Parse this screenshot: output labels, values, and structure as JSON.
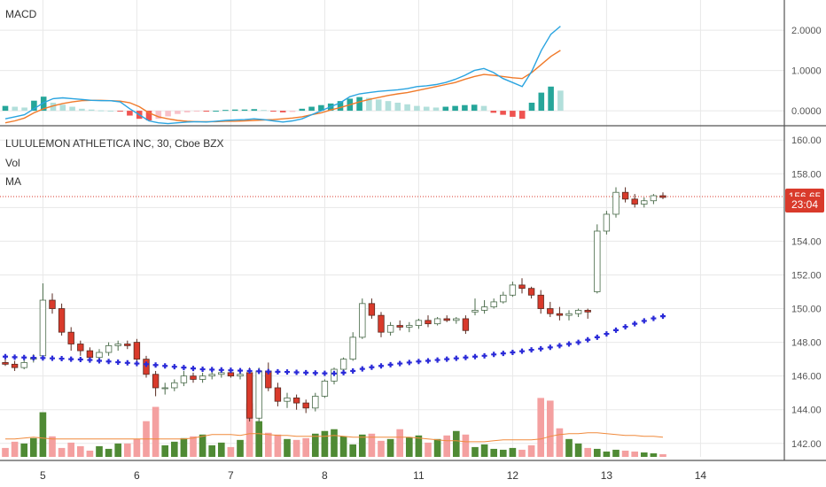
{
  "panes": {
    "macd": {
      "title": "MACD"
    },
    "price": {
      "title": "LULULEMON ATHLETICA INC, 30, Cboe BZX",
      "volume_label": "Vol",
      "ma_label": "MA"
    }
  },
  "price_tags": {
    "last_price": "156.65",
    "countdown": "23:04"
  },
  "colors": {
    "up_body": "#ffffff",
    "up_border": "#4a6b4a",
    "down": "#d93a2b",
    "vol_up": "#4f8a34",
    "vol_down": "#f4a0a0",
    "vol_ma": "#f08a3c",
    "ma_marker": "#2a2ad8",
    "macd_line": "#2aa4e0",
    "signal_line": "#f07a2a",
    "hist_up": "#26a69a",
    "hist_up_fading": "#b2dfdb",
    "hist_down": "#ef5350",
    "hist_down_fading": "#f8c0c8",
    "last_price_line": "#d93a2b",
    "grid": "#e8e8e8",
    "tag_bg": "#d93a2b"
  },
  "chart_data": [
    {
      "type": "histogram",
      "title": "MACD",
      "ylim": [
        -0.35,
        2.75
      ],
      "yticks": [
        "2.0000",
        "1.0000",
        "0.0000"
      ],
      "ytick_values": [
        2,
        1,
        0
      ],
      "n": 59,
      "macd": [
        -0.2,
        -0.15,
        -0.1,
        0.05,
        0.2,
        0.3,
        0.32,
        0.3,
        0.28,
        0.26,
        0.25,
        0.25,
        0.22,
        0.05,
        -0.1,
        -0.25,
        -0.3,
        -0.32,
        -0.3,
        -0.28,
        -0.27,
        -0.28,
        -0.26,
        -0.24,
        -0.23,
        -0.22,
        -0.2,
        -0.22,
        -0.25,
        -0.28,
        -0.25,
        -0.2,
        -0.1,
        0.0,
        0.1,
        0.2,
        0.35,
        0.42,
        0.45,
        0.48,
        0.5,
        0.52,
        0.55,
        0.6,
        0.62,
        0.65,
        0.7,
        0.78,
        0.88,
        1.0,
        1.05,
        0.95,
        0.8,
        0.7,
        0.6,
        0.98,
        1.5,
        1.9,
        2.1
      ],
      "signal": [
        -0.3,
        -0.25,
        -0.18,
        -0.05,
        0.05,
        0.12,
        0.18,
        0.22,
        0.25,
        0.26,
        0.26,
        0.25,
        0.24,
        0.2,
        0.1,
        -0.05,
        -0.15,
        -0.2,
        -0.24,
        -0.26,
        -0.27,
        -0.27,
        -0.27,
        -0.26,
        -0.26,
        -0.25,
        -0.24,
        -0.23,
        -0.22,
        -0.2,
        -0.18,
        -0.15,
        -0.1,
        -0.05,
        0.02,
        0.08,
        0.15,
        0.22,
        0.28,
        0.33,
        0.38,
        0.42,
        0.45,
        0.5,
        0.55,
        0.6,
        0.65,
        0.7,
        0.78,
        0.85,
        0.9,
        0.88,
        0.85,
        0.82,
        0.8,
        0.95,
        1.15,
        1.35,
        1.5
      ],
      "histogram": [
        0.12,
        0.1,
        0.08,
        0.25,
        0.35,
        0.2,
        0.15,
        0.1,
        0.05,
        0.03,
        0.01,
        0.0,
        -0.02,
        -0.12,
        -0.2,
        -0.24,
        -0.2,
        -0.14,
        -0.08,
        -0.04,
        -0.02,
        -0.02,
        0.0,
        0.02,
        0.03,
        0.03,
        0.04,
        0.02,
        -0.01,
        -0.04,
        -0.03,
        0.05,
        0.1,
        0.14,
        0.18,
        0.24,
        0.3,
        0.34,
        0.32,
        0.28,
        0.24,
        0.2,
        0.16,
        0.12,
        0.1,
        0.08,
        0.1,
        0.12,
        0.14,
        0.15,
        0.12,
        -0.05,
        -0.1,
        -0.15,
        -0.2,
        0.2,
        0.45,
        0.6,
        0.5
      ]
    },
    {
      "type": "candlestick",
      "title": "LULULEMON ATHLETICA INC, 30, Cboe BZX",
      "ylim": [
        141.2,
        160.8
      ],
      "yticks": [
        "160.00",
        "158.00",
        "156.00",
        "154.00",
        "152.00",
        "150.00",
        "148.00",
        "146.00",
        "144.00",
        "142.00"
      ],
      "ytick_values": [
        160,
        158,
        156,
        154,
        152,
        150,
        148,
        146,
        144,
        142
      ],
      "x_tick_labels": [
        "5",
        "6",
        "7",
        "8",
        "11",
        "12",
        "13",
        "14"
      ],
      "x_tick_index": [
        4,
        14,
        24,
        34,
        44,
        54,
        64,
        74
      ],
      "total_slots": 82,
      "last_price": 156.65,
      "ohlc": [
        [
          146.8,
          147.0,
          146.6,
          146.7
        ],
        [
          146.7,
          146.9,
          146.3,
          146.5
        ],
        [
          146.5,
          147.0,
          146.4,
          146.8
        ],
        [
          147.0,
          147.3,
          146.8,
          147.1
        ],
        [
          147.2,
          151.5,
          147.0,
          150.5
        ],
        [
          150.5,
          150.9,
          149.7,
          150.0
        ],
        [
          150.0,
          150.3,
          148.4,
          148.6
        ],
        [
          148.6,
          148.9,
          147.5,
          147.9
        ],
        [
          147.9,
          148.1,
          147.2,
          147.5
        ],
        [
          147.5,
          147.7,
          146.9,
          147.1
        ],
        [
          147.1,
          147.6,
          146.9,
          147.4
        ],
        [
          147.4,
          148.0,
          147.2,
          147.8
        ],
        [
          147.8,
          148.1,
          147.5,
          147.9
        ],
        [
          147.9,
          148.1,
          147.6,
          147.8
        ],
        [
          148.0,
          148.2,
          146.8,
          147.0
        ],
        [
          147.0,
          147.2,
          145.9,
          146.1
        ],
        [
          146.1,
          146.3,
          144.8,
          145.3
        ],
        [
          145.3,
          145.6,
          144.9,
          145.3
        ],
        [
          145.3,
          145.8,
          145.1,
          145.6
        ],
        [
          145.6,
          146.3,
          145.4,
          146.0
        ],
        [
          146.0,
          146.2,
          145.6,
          145.8
        ],
        [
          145.8,
          146.2,
          145.6,
          146.0
        ],
        [
          146.0,
          146.3,
          145.8,
          146.1
        ],
        [
          146.1,
          146.4,
          145.9,
          146.2
        ],
        [
          146.2,
          146.4,
          145.9,
          146.0
        ],
        [
          146.0,
          146.3,
          145.8,
          146.1
        ],
        [
          146.2,
          146.5,
          143.3,
          143.5
        ],
        [
          143.5,
          146.5,
          143.2,
          146.3
        ],
        [
          146.3,
          146.8,
          145.1,
          145.3
        ],
        [
          145.3,
          145.6,
          144.2,
          144.5
        ],
        [
          144.5,
          145.0,
          144.1,
          144.7
        ],
        [
          144.7,
          144.9,
          144.0,
          144.4
        ],
        [
          144.4,
          144.6,
          143.8,
          144.1
        ],
        [
          144.1,
          145.0,
          143.9,
          144.8
        ],
        [
          144.8,
          145.8,
          144.7,
          145.7
        ],
        [
          145.7,
          146.5,
          145.5,
          146.4
        ],
        [
          146.4,
          147.1,
          146.2,
          147.0
        ],
        [
          147.0,
          148.6,
          146.9,
          148.3
        ],
        [
          148.3,
          150.6,
          148.2,
          150.3
        ],
        [
          150.3,
          150.6,
          149.4,
          149.6
        ],
        [
          149.6,
          149.8,
          148.3,
          148.6
        ],
        [
          148.6,
          149.2,
          148.4,
          149.0
        ],
        [
          149.0,
          149.3,
          148.7,
          148.9
        ],
        [
          148.9,
          149.2,
          148.6,
          149.0
        ],
        [
          149.0,
          149.4,
          148.8,
          149.3
        ],
        [
          149.3,
          149.6,
          148.9,
          149.1
        ],
        [
          149.1,
          149.5,
          149.0,
          149.4
        ],
        [
          149.4,
          149.6,
          149.2,
          149.3
        ],
        [
          149.3,
          149.5,
          149.1,
          149.4
        ],
        [
          149.4,
          149.6,
          148.5,
          148.7
        ],
        [
          149.8,
          150.6,
          149.6,
          149.9
        ],
        [
          149.9,
          150.5,
          149.7,
          150.1
        ],
        [
          150.1,
          150.6,
          150.0,
          150.4
        ],
        [
          150.4,
          151.0,
          150.3,
          150.8
        ],
        [
          150.8,
          151.6,
          150.7,
          151.4
        ],
        [
          151.4,
          151.8,
          150.9,
          151.2
        ],
        [
          151.2,
          151.3,
          150.6,
          150.8
        ],
        [
          150.8,
          151.1,
          149.7,
          150.0
        ],
        [
          150.0,
          150.4,
          149.5,
          149.7
        ],
        [
          149.7,
          150.1,
          149.3,
          149.6
        ],
        [
          149.6,
          149.9,
          149.3,
          149.7
        ],
        [
          149.7,
          150.0,
          149.5,
          149.9
        ],
        [
          149.9,
          150.0,
          149.4,
          149.8
        ],
        [
          151.0,
          155.0,
          150.9,
          154.6
        ],
        [
          154.6,
          155.8,
          154.4,
          155.6
        ],
        [
          155.6,
          157.2,
          155.4,
          156.9
        ],
        [
          156.9,
          157.2,
          156.3,
          156.5
        ],
        [
          156.5,
          156.8,
          156.0,
          156.2
        ],
        [
          156.2,
          156.6,
          156.0,
          156.4
        ],
        [
          156.4,
          156.8,
          156.2,
          156.7
        ],
        [
          156.7,
          156.9,
          156.5,
          156.6
        ]
      ],
      "volume_ylim": [
        0,
        11.5
      ],
      "volume": [
        1.0,
        1.7,
        1.5,
        2.1,
        5.0,
        2.3,
        1.0,
        1.6,
        1.2,
        0.7,
        1.2,
        0.9,
        1.5,
        1.5,
        2.0,
        4.0,
        5.6,
        1.3,
        1.7,
        2.1,
        2.3,
        2.5,
        1.3,
        1.6,
        1.1,
        1.9,
        6.0,
        4.0,
        2.7,
        2.5,
        2.0,
        1.9,
        2.1,
        2.6,
        2.9,
        3.1,
        2.3,
        1.4,
        2.5,
        2.6,
        1.8,
        2.0,
        3.1,
        2.2,
        2.4,
        1.6,
        2.0,
        2.4,
        2.9,
        2.5,
        1.1,
        1.4,
        0.9,
        0.8,
        1.0,
        0.8,
        1.3,
        6.6,
        6.3,
        3.2,
        2.0,
        1.5,
        1.0,
        0.9,
        0.6,
        0.8,
        0.7,
        0.6,
        0.5,
        0.4,
        0.3
      ],
      "volume_ma": [
        2.0,
        2.0,
        2.1,
        2.2,
        2.1,
        2.0,
        2.0,
        2.0,
        2.0,
        2.0,
        2.0,
        2.0,
        2.0,
        2.0,
        2.0,
        2.0,
        2.0,
        2.0,
        2.0,
        2.0,
        2.1,
        2.3,
        2.5,
        2.5,
        2.5,
        2.4,
        2.6,
        2.6,
        2.5,
        2.4,
        2.4,
        2.3,
        2.3,
        2.3,
        2.3,
        2.4,
        2.3,
        2.2,
        2.2,
        2.2,
        2.2,
        2.2,
        2.2,
        2.2,
        2.1,
        2.0,
        1.9,
        1.8,
        1.8,
        1.7,
        1.7,
        1.7,
        1.8,
        1.9,
        1.9,
        1.9,
        1.9,
        2.0,
        2.3,
        2.5,
        2.6,
        2.6,
        2.7,
        2.7,
        2.6,
        2.5,
        2.4,
        2.4,
        2.3,
        2.3,
        2.2
      ],
      "ma": [
        147.15,
        147.12,
        147.1,
        147.08,
        147.07,
        147.05,
        147.03,
        147.0,
        146.98,
        146.95,
        146.9,
        146.86,
        146.82,
        146.78,
        146.74,
        146.7,
        146.65,
        146.6,
        146.55,
        146.5,
        146.45,
        146.4,
        146.38,
        146.36,
        146.34,
        146.32,
        146.3,
        146.28,
        146.26,
        146.25,
        146.24,
        146.22,
        146.2,
        146.18,
        146.16,
        146.15,
        146.2,
        146.3,
        146.42,
        146.52,
        146.6,
        146.67,
        146.74,
        146.8,
        146.86,
        146.9,
        146.95,
        147.0,
        147.05,
        147.1,
        147.15,
        147.2,
        147.28,
        147.34,
        147.4,
        147.47,
        147.55,
        147.62,
        147.7,
        147.8,
        147.9,
        148.0,
        148.15,
        148.3,
        148.5,
        148.72,
        148.92,
        149.1,
        149.27,
        149.42,
        149.55
      ]
    }
  ]
}
